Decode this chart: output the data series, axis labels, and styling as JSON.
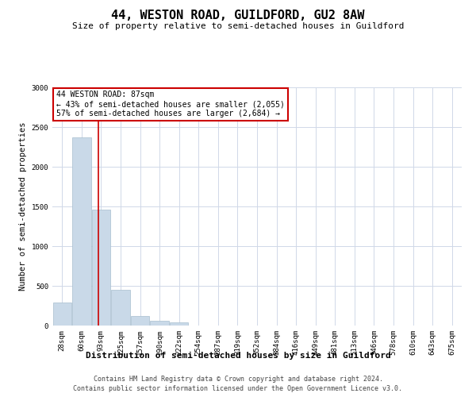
{
  "title": "44, WESTON ROAD, GUILDFORD, GU2 8AW",
  "subtitle": "Size of property relative to semi-detached houses in Guildford",
  "xlabel": "Distribution of semi-detached houses by size in Guildford",
  "ylabel": "Number of semi-detached properties",
  "bar_labels": [
    "28sqm",
    "60sqm",
    "93sqm",
    "125sqm",
    "157sqm",
    "190sqm",
    "222sqm",
    "254sqm",
    "287sqm",
    "319sqm",
    "352sqm",
    "384sqm",
    "416sqm",
    "449sqm",
    "481sqm",
    "513sqm",
    "546sqm",
    "578sqm",
    "610sqm",
    "643sqm",
    "675sqm"
  ],
  "bar_values": [
    290,
    2370,
    1460,
    450,
    125,
    65,
    45,
    0,
    0,
    0,
    0,
    0,
    0,
    0,
    0,
    0,
    0,
    0,
    0,
    0,
    0
  ],
  "bar_color": "#c9d9e8",
  "bar_edge_color": "#a8bece",
  "annotation_text_line1": "44 WESTON ROAD: 87sqm",
  "annotation_text_line2": "← 43% of semi-detached houses are smaller (2,055)",
  "annotation_text_line3": "57% of semi-detached houses are larger (2,684) →",
  "property_line_x": 1.87,
  "ylim": [
    0,
    3000
  ],
  "yticks": [
    0,
    500,
    1000,
    1500,
    2000,
    2500,
    3000
  ],
  "footer_line1": "Contains HM Land Registry data © Crown copyright and database right 2024.",
  "footer_line2": "Contains public sector information licensed under the Open Government Licence v3.0.",
  "background_color": "#ffffff",
  "grid_color": "#d0d8e8",
  "annotation_box_color": "#ffffff",
  "annotation_box_edge_color": "#cc0000",
  "property_line_color": "#cc0000",
  "title_fontsize": 11,
  "subtitle_fontsize": 8,
  "ylabel_fontsize": 7.5,
  "xlabel_fontsize": 8,
  "tick_fontsize": 6.5,
  "annotation_fontsize": 7,
  "footer_fontsize": 6
}
